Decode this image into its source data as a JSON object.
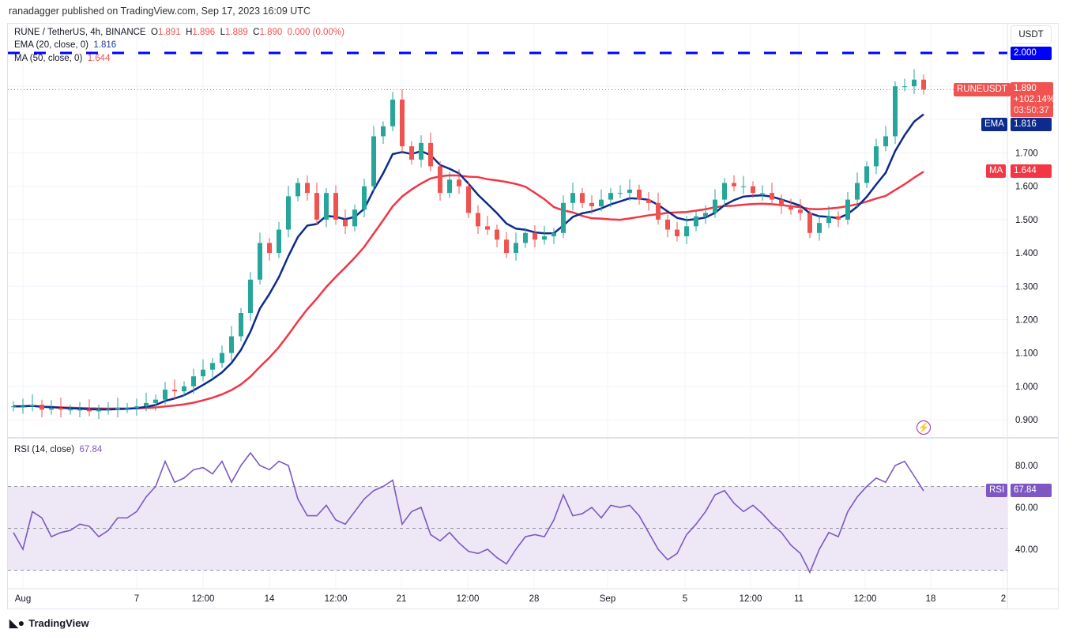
{
  "header": {
    "published": "ranadagger published on TradingView.com, Sep 17, 2023 16:09 UTC"
  },
  "legend": {
    "symbol": "RUNE / TetherUS, 4h, BINANCE",
    "o_label": "O",
    "o": "1.891",
    "h_label": "H",
    "h": "1.896",
    "l_label": "L",
    "l": "1.889",
    "c_label": "C",
    "c": "1.890",
    "change": "0.000 (0.00%)",
    "ema_label": "EMA (20, close, 0)",
    "ema_value": "1.816",
    "ma_label": "MA (50, close, 0)",
    "ma_value": "1.644",
    "rsi_label": "RSI (14, close)",
    "rsi_value": "67.84"
  },
  "price_scale": {
    "currency": "USDT",
    "level_label": "2.000",
    "symbol_tag": "RUNEUSDT",
    "last_price": "1.890",
    "change_pct": "+102.14%",
    "countdown": "03:50:37",
    "ema_tag": "EMA",
    "ema_price": "1.816",
    "ma_tag": "MA",
    "ma_price": "1.644",
    "rsi_tag": "RSI",
    "rsi_price": "67.84"
  },
  "footer": {
    "logo_text": "TradingView"
  },
  "icons": {
    "alert": "lightning-bolt-icon",
    "logo": "tradingview-logo-icon"
  },
  "colors": {
    "up": "#26a69a",
    "down": "#ef5350",
    "ema": "#0d2b8c",
    "ma": "#f23645",
    "level": "#0000ff",
    "rsi": "#7e57c2",
    "rsi_band": "#ede7f6"
  },
  "chart_data": [
    {
      "type": "candlestick",
      "interval": "12h sampled closes (approx.)",
      "x_tick_labels": [
        "Aug",
        "7",
        "12:00",
        "14",
        "12:00",
        "21",
        "12:00",
        "28",
        "Sep",
        "5",
        "12:00",
        "11",
        "12:00",
        "18",
        "2"
      ],
      "y_tick_labels": [
        "0.900",
        "1.000",
        "1.100",
        "1.200",
        "1.300",
        "1.400",
        "1.500",
        "1.600",
        "1.700"
      ],
      "ylim": [
        0.86,
        2.09
      ],
      "horizontal_level": 2.0,
      "close": [
        0.94,
        0.94,
        0.945,
        0.93,
        0.935,
        0.93,
        0.93,
        0.93,
        0.925,
        0.93,
        0.93,
        0.935,
        0.935,
        0.94,
        0.95,
        0.96,
        0.99,
        0.985,
        1.0,
        1.03,
        1.05,
        1.07,
        1.1,
        1.15,
        1.22,
        1.32,
        1.43,
        1.4,
        1.47,
        1.57,
        1.61,
        1.58,
        1.5,
        1.58,
        1.5,
        1.48,
        1.53,
        1.6,
        1.75,
        1.78,
        1.86,
        1.72,
        1.68,
        1.73,
        1.66,
        1.58,
        1.62,
        1.6,
        1.52,
        1.48,
        1.47,
        1.44,
        1.4,
        1.43,
        1.46,
        1.44,
        1.45,
        1.46,
        1.55,
        1.58,
        1.55,
        1.54,
        1.56,
        1.58,
        1.58,
        1.59,
        1.56,
        1.55,
        1.5,
        1.47,
        1.45,
        1.48,
        1.51,
        1.52,
        1.56,
        1.61,
        1.6,
        1.6,
        1.58,
        1.58,
        1.56,
        1.54,
        1.53,
        1.52,
        1.46,
        1.49,
        1.51,
        1.5,
        1.56,
        1.61,
        1.66,
        1.72,
        1.75,
        1.9,
        1.9,
        1.92,
        1.89
      ],
      "ema_last": 1.816,
      "ma_last": 1.644
    },
    {
      "type": "line",
      "name": "RSI (14, close)",
      "y_tick_labels": [
        "40.00",
        "60.00",
        "80.00"
      ],
      "bands": [
        30,
        50,
        70
      ],
      "values": [
        48,
        40,
        58,
        55,
        46,
        48,
        49,
        52,
        51,
        46,
        49,
        55,
        55,
        58,
        65,
        70,
        82,
        72,
        74,
        78,
        79,
        76,
        82,
        72,
        80,
        86,
        80,
        78,
        82,
        80,
        64,
        56,
        56,
        61,
        54,
        52,
        58,
        64,
        68,
        70,
        73,
        52,
        58,
        60,
        47,
        44,
        48,
        43,
        39,
        38,
        40,
        36,
        33,
        40,
        46,
        47,
        46,
        54,
        66,
        56,
        57,
        60,
        55,
        61,
        60,
        61,
        56,
        48,
        40,
        35,
        38,
        47,
        52,
        58,
        66,
        68,
        62,
        58,
        61,
        57,
        52,
        48,
        42,
        38,
        29,
        40,
        48,
        46,
        58,
        65,
        70,
        74,
        72,
        80,
        82,
        75,
        67.84
      ]
    }
  ]
}
